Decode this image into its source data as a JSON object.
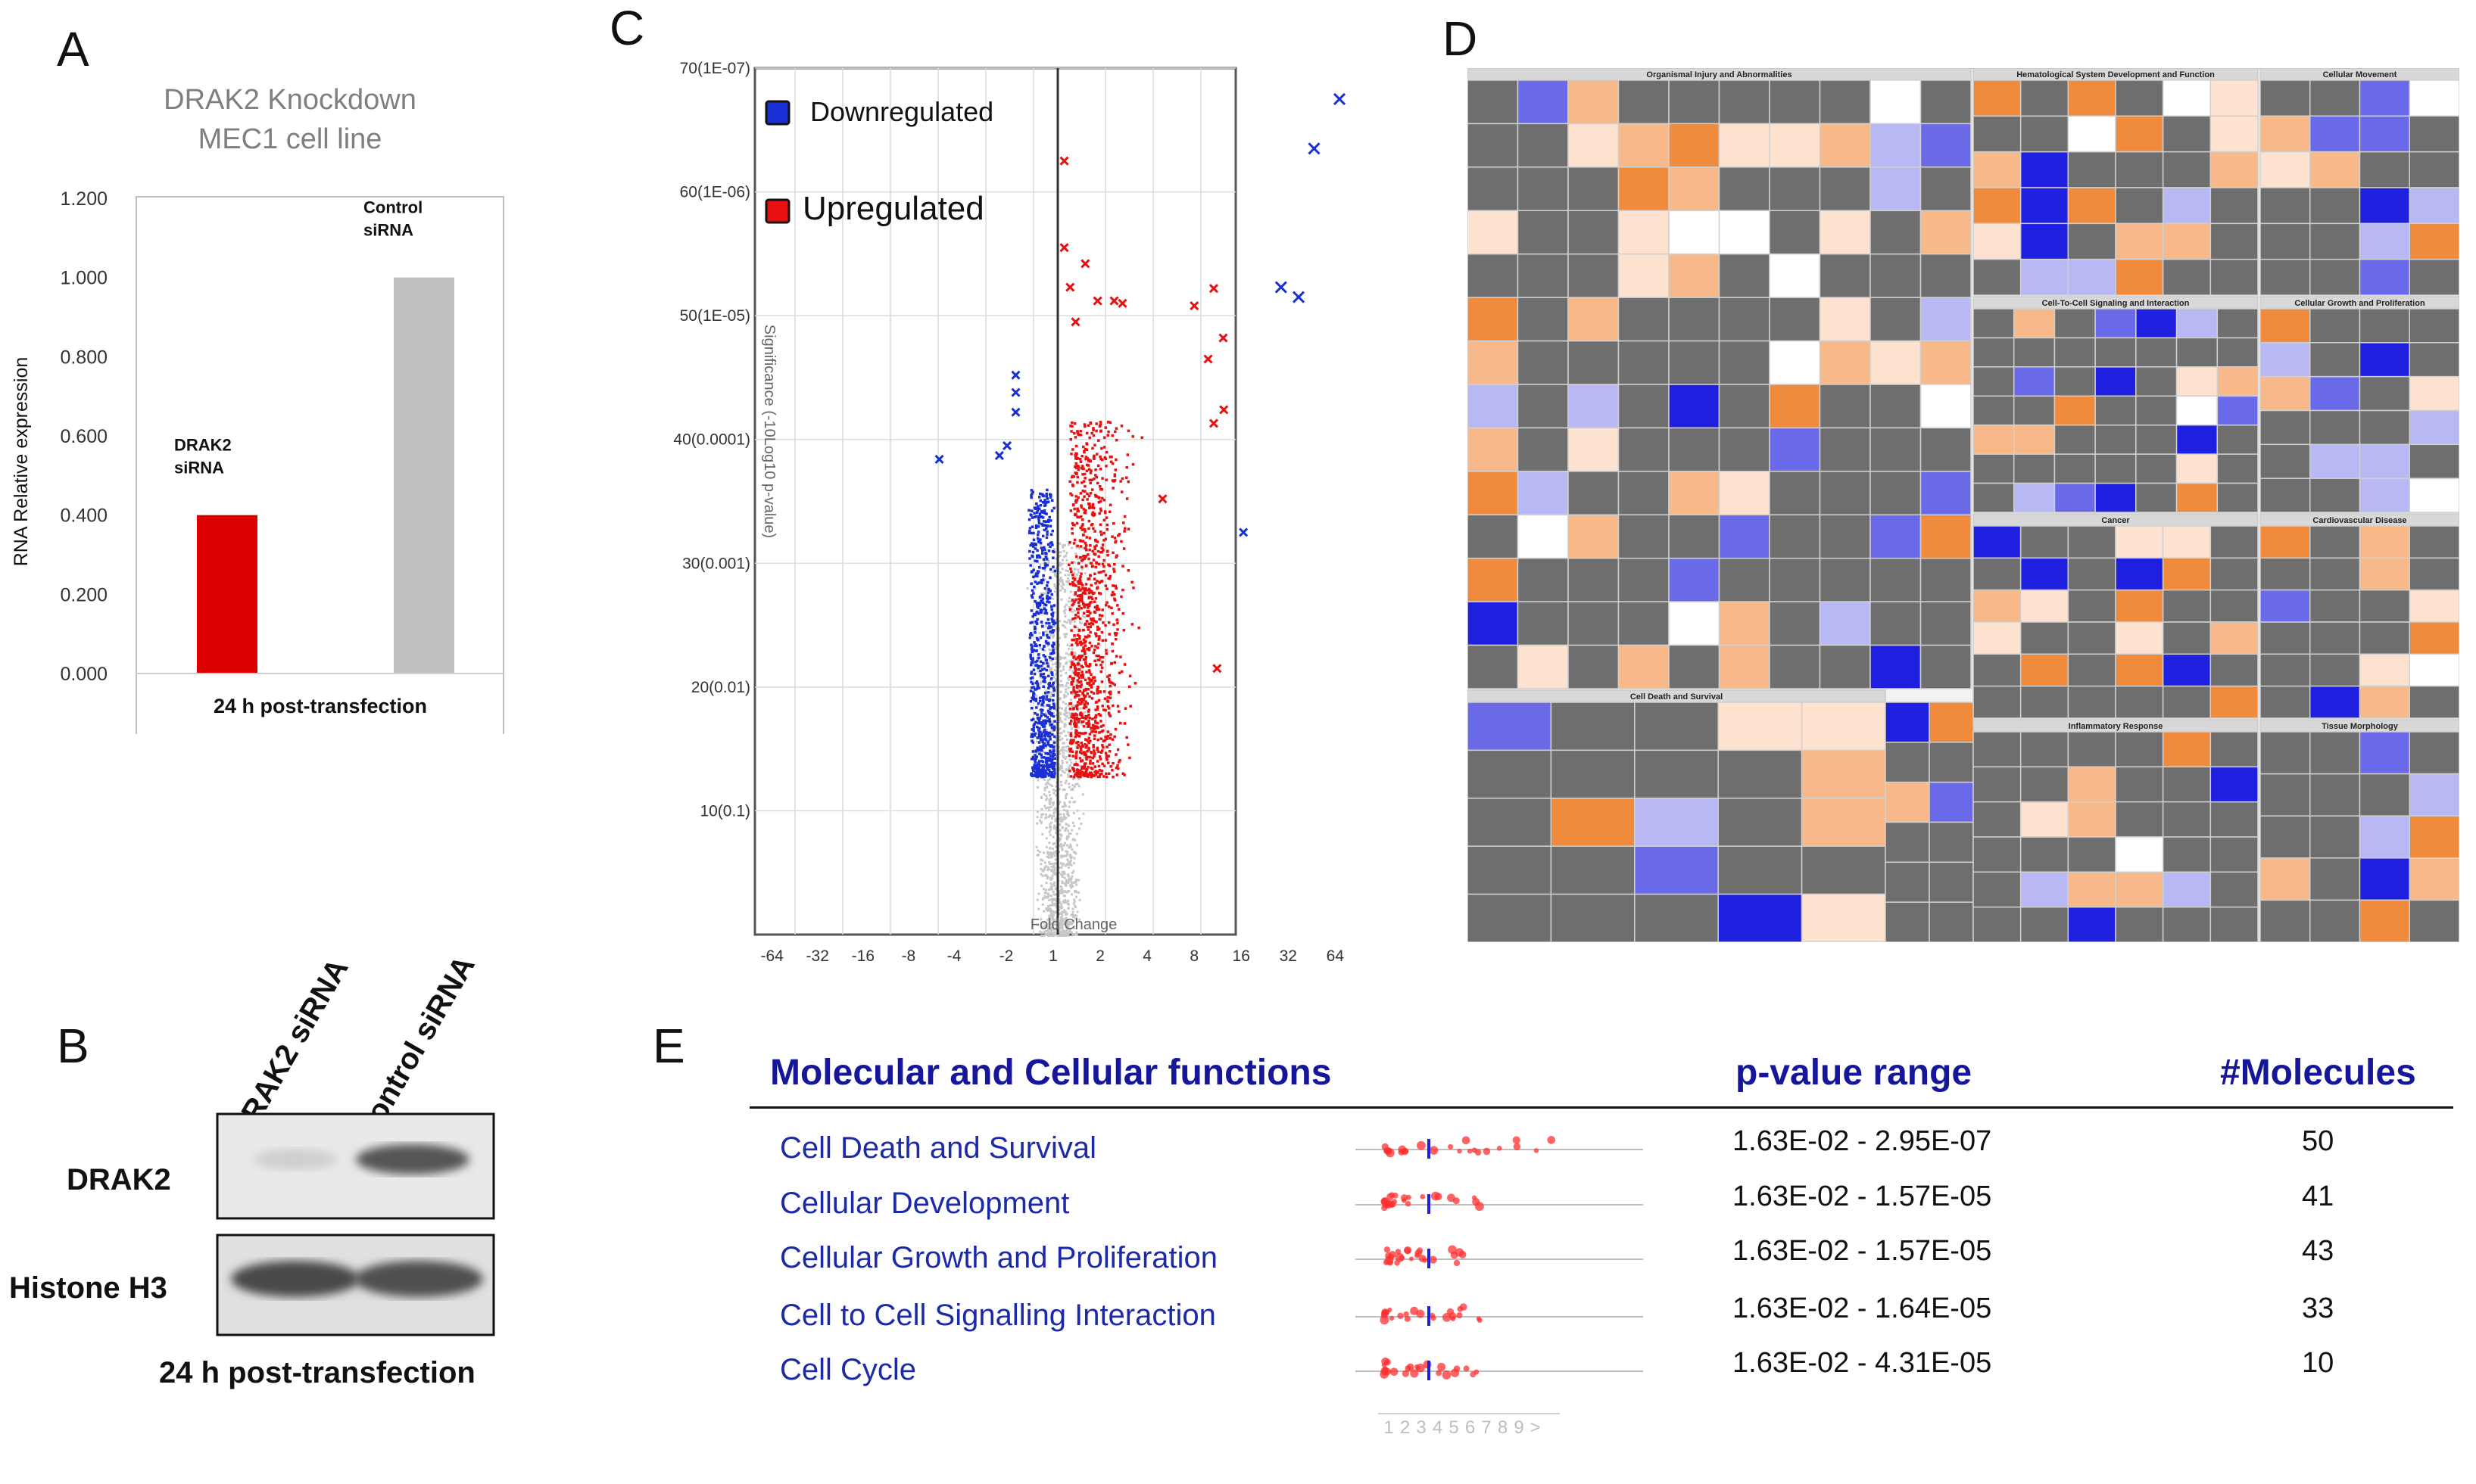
{
  "panels": {
    "A": "A",
    "B": "B",
    "C": "C",
    "D": "D",
    "E": "E"
  },
  "panelA": {
    "chart_data": {
      "type": "bar",
      "title_lines": [
        "DRAK2 Knockdown",
        "MEC1 cell line"
      ],
      "ylabel": "RNA Relative expression",
      "xlabel": "24 h post-transfection",
      "ylim": [
        0,
        1.2
      ],
      "yticks": [
        "0.000",
        "0.200",
        "0.400",
        "0.600",
        "0.800",
        "1.000",
        "1.200"
      ],
      "bars": [
        {
          "label_lines": [
            "DRAK2",
            "siRNA"
          ],
          "value": 0.4,
          "color": "#dd0000"
        },
        {
          "label_lines": [
            "Control",
            "siRNA"
          ],
          "value": 1.0,
          "color": "#c0c0c0"
        }
      ]
    }
  },
  "panelB": {
    "lanes": [
      "DRAK2 siRNA",
      "Control siRNA"
    ],
    "rows": [
      "DRAK2",
      "Histone H3"
    ],
    "caption": "24 h post-transfection"
  },
  "panelC": {
    "chart_data": {
      "type": "scatter",
      "subtype": "volcano",
      "xlabel": "Fold Change",
      "ylabel": "Significance (-10Log10 p-value)",
      "xticks": [
        "-64",
        "-32",
        "-16",
        "-8",
        "-4",
        "-2",
        "1",
        "2",
        "4",
        "8",
        "16",
        "32",
        "64"
      ],
      "yticks": [
        "10(0.1)",
        "20(0.01)",
        "30(0.001)",
        "40(0.0001)",
        "50(1E-05)",
        "60(1E-06)",
        "70(1E-07)"
      ],
      "ylim": [
        0,
        70
      ],
      "legend": [
        {
          "label": "Downregulated",
          "color": "#1a2fd6"
        },
        {
          "label": "Upregulated",
          "color": "#e81010"
        }
      ],
      "highlight_points": [
        {
          "fc": 64,
          "sig": 67.5,
          "group": "down"
        },
        {
          "fc": 44,
          "sig": 63.5,
          "group": "down"
        },
        {
          "fc": 27,
          "sig": 52.3,
          "group": "down"
        },
        {
          "fc": 35,
          "sig": 51.5,
          "group": "down"
        },
        {
          "fc": 15.5,
          "sig": 32.5,
          "group": "down"
        },
        {
          "fc": 7.5,
          "sig": 50.8,
          "group": "up"
        },
        {
          "fc": 10,
          "sig": 52.2,
          "group": "up"
        },
        {
          "fc": 11.5,
          "sig": 48.2,
          "group": "up"
        },
        {
          "fc": 9.2,
          "sig": 46.5,
          "group": "up"
        },
        {
          "fc": 11.6,
          "sig": 42.4,
          "group": "up"
        },
        {
          "fc": 10,
          "sig": 41.3,
          "group": "up"
        },
        {
          "fc": 4.7,
          "sig": 35.2,
          "group": "up"
        },
        {
          "fc": 10.5,
          "sig": 21.5,
          "group": "up"
        },
        {
          "fc": -3.4,
          "sig": 38.4,
          "group": "down"
        },
        {
          "fc": -1.1,
          "sig": 45.2,
          "group": "down"
        },
        {
          "fc": -1.1,
          "sig": 43.8,
          "group": "down"
        },
        {
          "fc": -1.1,
          "sig": 42.2,
          "group": "down"
        },
        {
          "fc": -1.25,
          "sig": 39.5,
          "group": "down"
        },
        {
          "fc": -1.4,
          "sig": 38.7,
          "group": "down"
        },
        {
          "fc": 1.1,
          "sig": 62.5,
          "group": "up"
        },
        {
          "fc": 1.1,
          "sig": 55.5,
          "group": "up"
        },
        {
          "fc": 1.5,
          "sig": 54.2,
          "group": "up"
        },
        {
          "fc": 1.2,
          "sig": 52.3,
          "group": "up"
        },
        {
          "fc": 1.8,
          "sig": 51.2,
          "group": "up"
        },
        {
          "fc": 2.3,
          "sig": 51.2,
          "group": "up"
        },
        {
          "fc": 2.6,
          "sig": 51.0,
          "group": "up"
        },
        {
          "fc": 1.3,
          "sig": 49.5,
          "group": "up"
        }
      ]
    }
  },
  "panelD": {
    "categories": [
      "Organismal Injury and Abnormalities",
      "Hematological System Development and Function",
      "Cellular Movement",
      "Cell-To-Cell Signaling and Interaction",
      "Cellular Growth and Proliferation",
      "Cancer",
      "Cardiovascular Disease",
      "Cell Death and Survival",
      "Inflammatory Response",
      "Tissue Morphology"
    ]
  },
  "panelE": {
    "headers": {
      "function": "Molecular and Cellular functions",
      "pvalue": "p-value range",
      "molecules": "#Molecules"
    },
    "rows": [
      {
        "name": "Cell Death and Survival",
        "pvalue": "1.63E-02 - 2.95E-07",
        "molecules": "50"
      },
      {
        "name": "Cellular Development",
        "pvalue": "1.63E-02 - 1.57E-05",
        "molecules": "41"
      },
      {
        "name": "Cellular Growth and Proliferation",
        "pvalue": "1.63E-02 - 1.57E-05",
        "molecules": "43"
      },
      {
        "name": "Cell to Cell Signalling Interaction",
        "pvalue": "1.63E-02 - 1.64E-05",
        "molecules": "33"
      },
      {
        "name": "Cell Cycle",
        "pvalue": "1.63E-02 - 4.31E-05",
        "molecules": "10"
      }
    ],
    "axis_ticks": [
      "1",
      "2",
      "3",
      "4",
      "5",
      "6",
      "7",
      "8",
      "9",
      ">"
    ]
  }
}
